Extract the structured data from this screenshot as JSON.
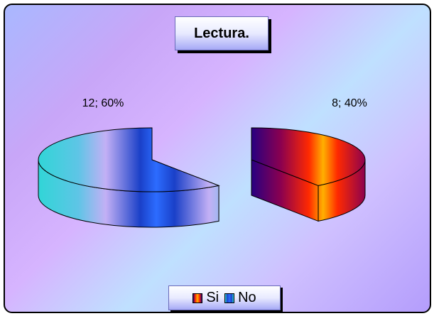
{
  "chart_data": {
    "type": "pie",
    "title": "Lectura.",
    "categories": [
      "Si",
      "No"
    ],
    "values": [
      8,
      12
    ],
    "percentages": [
      "40%",
      "60%"
    ],
    "data_labels": [
      "8; 40%",
      "12; 60%"
    ],
    "legend_position": "bottom",
    "colors": [
      "#ff2a00",
      "#1a4cff"
    ]
  }
}
